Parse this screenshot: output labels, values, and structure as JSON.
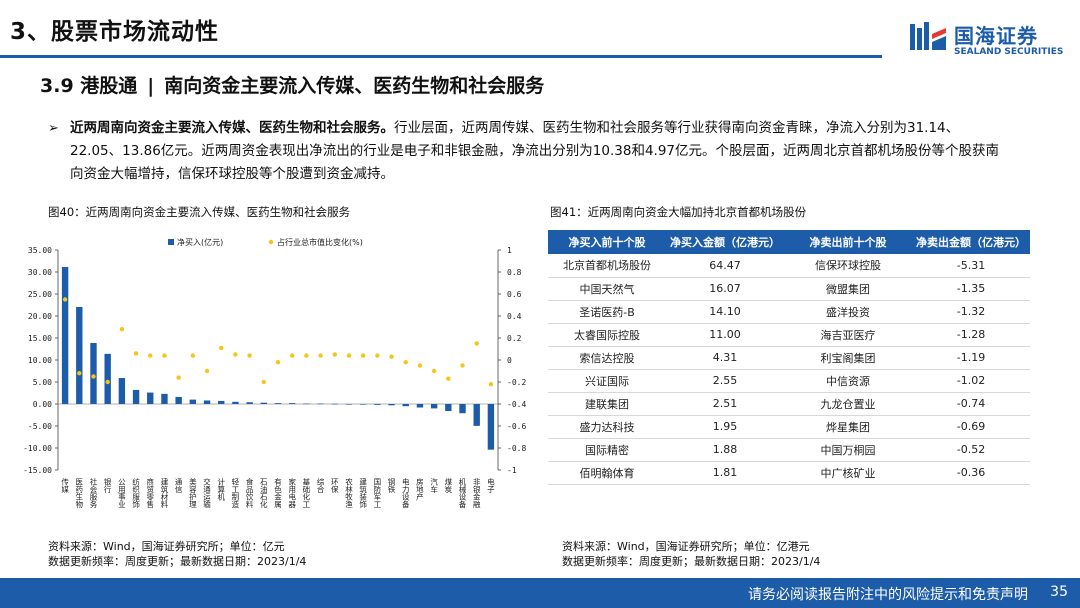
{
  "header": {
    "section_title": "3、股票市场流动性",
    "logo_cn": "国海证券",
    "logo_en": "SEALAND SECURITIES"
  },
  "subtitle": {
    "number": "3.9 港股通",
    "separator": "|",
    "text": "南向资金主要流入传媒、医药生物和社会服务"
  },
  "bullet": {
    "bold": "近两周南向资金主要流入传媒、医药生物和社会服务。",
    "text": "行业层面，近两周传媒、医药生物和社会服务等行业获得南向资金青睐，净流入分别为31.14、22.05、13.86亿元。近两周资金表现出净流出的行业是电子和非银金融，净流出分别为10.38和4.97亿元。个股层面，近两周北京首都机场股份等个股获南向资金大幅增持，信保环球控股等个股遭到资金减持。"
  },
  "figure_left": {
    "caption": "图40：近两周南向资金主要流入传媒、医药生物和社会服务",
    "source_line1": "资料来源：Wind，国海证券研究所；单位：亿元",
    "source_line2": "数据更新频率：周度更新；最新数据日期：2023/1/4"
  },
  "figure_right": {
    "caption": "图41：近两周南向资金大幅加持北京首都机场股份",
    "source_line1": "资料来源：Wind，国海证券研究所；单位：亿港元",
    "source_line2": "数据更新频率：周度更新；最新数据日期：2023/1/4"
  },
  "chart_data": {
    "type": "bar",
    "categories": [
      "传媒",
      "医药生物",
      "社会服务",
      "银行",
      "公用事业",
      "纺织服饰",
      "商贸零售",
      "建筑材料",
      "通信",
      "美容护理",
      "交通运输",
      "计算机",
      "轻工制造",
      "食品饮料",
      "石油石化",
      "有色金属",
      "家用电器",
      "基础化工",
      "综合",
      "环保",
      "农林牧渔",
      "建筑装饰",
      "国防军工",
      "钢铁",
      "电力设备",
      "房地产",
      "汽车",
      "煤炭",
      "机械设备",
      "非银金融",
      "电子"
    ],
    "series": [
      {
        "name": "净买入(亿元)",
        "type": "bar",
        "axis": "left",
        "color": "#1d5ca8",
        "values": [
          31.14,
          22.05,
          13.86,
          11.4,
          5.9,
          3.2,
          2.6,
          2.3,
          1.6,
          1.0,
          0.8,
          0.7,
          0.5,
          0.4,
          0.3,
          0.2,
          0.2,
          0.1,
          0.1,
          0.05,
          0.0,
          -0.1,
          -0.2,
          -0.3,
          -0.5,
          -0.8,
          -1.0,
          -1.6,
          -2.1,
          -4.97,
          -10.38
        ]
      },
      {
        "name": "占行业总市值比变化(%)",
        "type": "scatter",
        "axis": "right",
        "color": "#f5c518",
        "values": [
          0.55,
          -0.12,
          -0.15,
          -0.2,
          0.28,
          0.06,
          0.04,
          0.04,
          -0.16,
          0.04,
          -0.1,
          0.11,
          0.05,
          0.04,
          -0.2,
          -0.02,
          0.04,
          0.04,
          0.04,
          0.05,
          0.04,
          0.04,
          0.04,
          0.03,
          -0.02,
          -0.05,
          -0.1,
          -0.17,
          -0.05,
          0.15,
          -0.22
        ]
      }
    ],
    "yleft_ticks": [
      "35.00",
      "30.00",
      "25.00",
      "20.00",
      "15.00",
      "10.00",
      "5.00",
      "0.00",
      "-5.00",
      "-10.00",
      "-15.00"
    ],
    "yleft_lim": [
      -15,
      35
    ],
    "yright_ticks": [
      "1",
      "0.8",
      "0.6",
      "0.4",
      "0.2",
      "0",
      "-0.2",
      "-0.4",
      "-0.6",
      "-0.8",
      "-1"
    ],
    "yright_lim": [
      -1,
      1
    ],
    "legend_position": "top-center",
    "grid": false
  },
  "table": {
    "headers": [
      "净买入前十个股",
      "净买入金额（亿港元）",
      "净卖出前十个股",
      "净卖出金额（亿港元）"
    ],
    "rows": [
      [
        "北京首都机场股份",
        "64.47",
        "信保环球控股",
        "-5.31"
      ],
      [
        "中国天然气",
        "16.07",
        "微盟集团",
        "-1.35"
      ],
      [
        "圣诺医药-B",
        "14.10",
        "盛洋投资",
        "-1.32"
      ],
      [
        "太睿国际控股",
        "11.00",
        "海吉亚医疗",
        "-1.28"
      ],
      [
        "索信达控股",
        "4.31",
        "利宝阁集团",
        "-1.19"
      ],
      [
        "兴证国际",
        "2.55",
        "中信资源",
        "-1.02"
      ],
      [
        "建联集团",
        "2.51",
        "九龙仓置业",
        "-0.74"
      ],
      [
        "盛力达科技",
        "1.95",
        "烨星集团",
        "-0.69"
      ],
      [
        "国际精密",
        "1.88",
        "中国万桐园",
        "-0.52"
      ],
      [
        "佰明翰体育",
        "1.81",
        "中广核矿业",
        "-0.36"
      ]
    ]
  },
  "footer": {
    "disclaimer": "请务必阅读报告附注中的风险提示和免责声明",
    "page": "35"
  },
  "colors": {
    "brand_blue": "#1d5ca8",
    "marker_yellow": "#f5c518"
  }
}
